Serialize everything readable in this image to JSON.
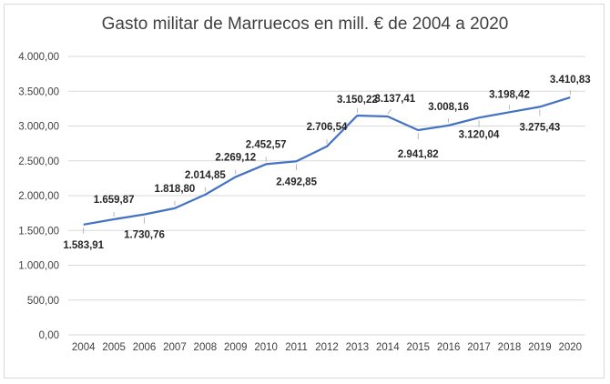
{
  "chart_data": {
    "type": "line",
    "title": "Gasto militar de Marruecos en mill. € de 2004 a 2020",
    "xlabel": "",
    "ylabel": "",
    "categories": [
      "2004",
      "2005",
      "2006",
      "2007",
      "2008",
      "2009",
      "2010",
      "2011",
      "2012",
      "2013",
      "2014",
      "2015",
      "2016",
      "2017",
      "2018",
      "2019",
      "2020"
    ],
    "series": [
      {
        "values": [
          1583.91,
          1659.87,
          1730.76,
          1818.8,
          2014.85,
          2269.12,
          2452.57,
          2492.85,
          2706.54,
          3150.22,
          3137.41,
          2941.82,
          3008.16,
          3120.04,
          3198.42,
          3275.43,
          3410.83
        ],
        "data_labels": [
          "1.583,91",
          "1.659,87",
          "1.730,76",
          "1.818,80",
          "2.014,85",
          "2.269,12",
          "2.452,57",
          "2.492,85",
          "2.706,54",
          "3.150,22",
          "3.137,41",
          "2.941,82",
          "3.008,16",
          "3.120,04",
          "3.198,42",
          "3.275,43",
          "3.410,83"
        ],
        "color": "#4472c4"
      }
    ],
    "ylim": [
      0,
      4000
    ],
    "yticks": [
      0,
      500,
      1000,
      1500,
      2000,
      2500,
      3000,
      3500,
      4000
    ],
    "ytick_labels": [
      "0,00",
      "500,00",
      "1.000,00",
      "1.500,00",
      "2.000,00",
      "2.500,00",
      "3.000,00",
      "3.500,00",
      "4.000,00"
    ],
    "grid": true,
    "legend": "none",
    "colors": {
      "line": "#4472c4",
      "grid": "#d9d9d9",
      "text": "#404040"
    }
  }
}
